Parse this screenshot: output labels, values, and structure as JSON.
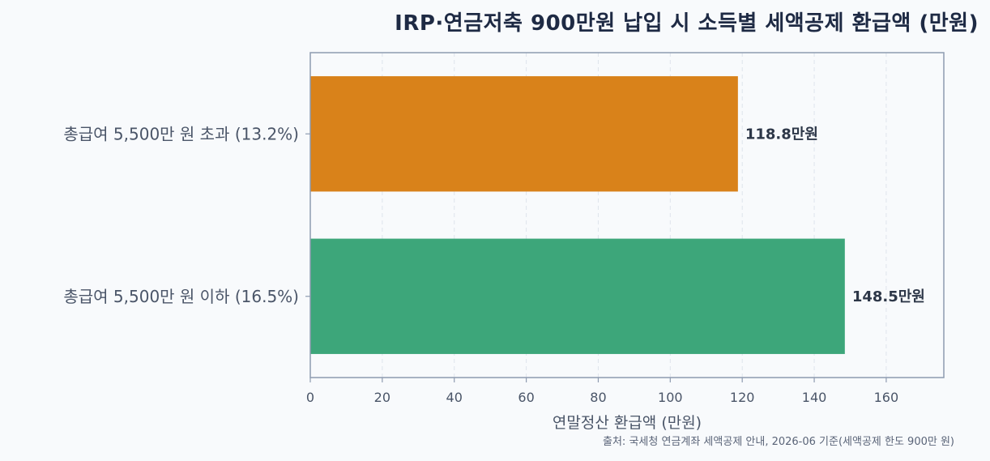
{
  "chart_data": {
    "type": "bar",
    "orientation": "horizontal",
    "title": "IRP·연금저축 900만원 납입 시 소득별 세액공제 환급액 (만원)",
    "categories": [
      "총급여 5,500만 원 초과 (13.2%)",
      "총급여 5,500만 원 이하 (16.5%)"
    ],
    "values": [
      118.8,
      148.5
    ],
    "value_labels": [
      "118.8만원",
      "148.5만원"
    ],
    "colors": [
      "#d9821a",
      "#3da67a"
    ],
    "xlabel": "연말정산 환급액 (만원)",
    "ylabel": "",
    "xlim": [
      0,
      176
    ],
    "xticks": [
      0,
      20,
      40,
      60,
      80,
      100,
      120,
      140,
      160
    ],
    "xtick_labels": [
      "0",
      "20",
      "40",
      "60",
      "80",
      "100",
      "120",
      "140",
      "160"
    ],
    "grid": true
  },
  "source_note": "출처: 국세청 연금계좌 세액공제 안내, 2026-06 기준(세액공제 한도 900만 원)"
}
